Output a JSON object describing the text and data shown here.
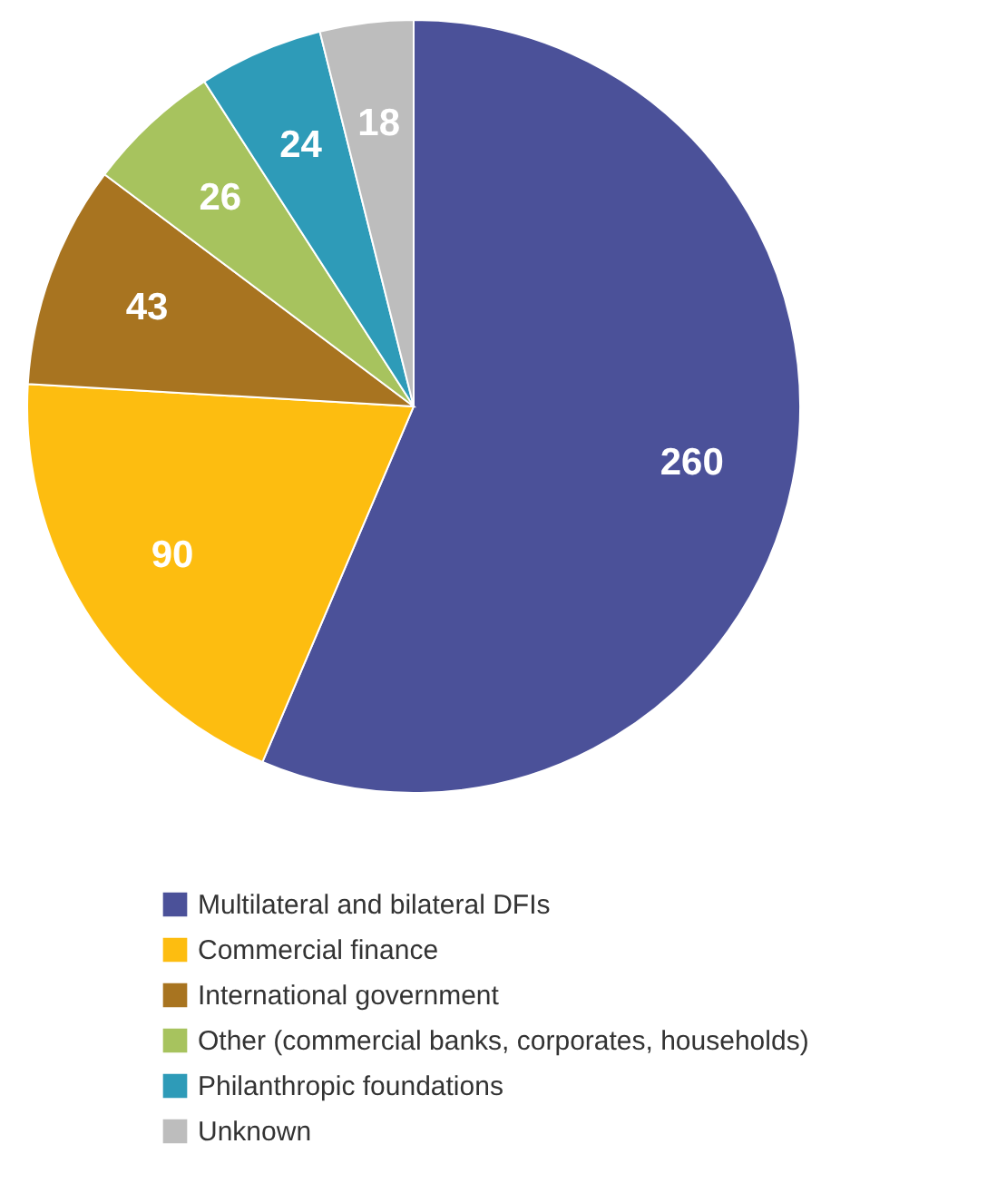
{
  "chart_data": {
    "type": "pie",
    "categories": [
      "Multilateral and bilateral DFIs",
      "Commercial finance",
      "International government",
      "Other (commercial banks, corporates, households)",
      "Philanthropic foundations",
      "Unknown"
    ],
    "values": [
      260,
      90,
      43,
      26,
      24,
      18
    ],
    "colors": [
      "#4b5199",
      "#fdbd10",
      "#a87420",
      "#a7c35e",
      "#2e9bb8",
      "#bdbdbd"
    ],
    "data_labels": true,
    "legend": "bottom"
  }
}
